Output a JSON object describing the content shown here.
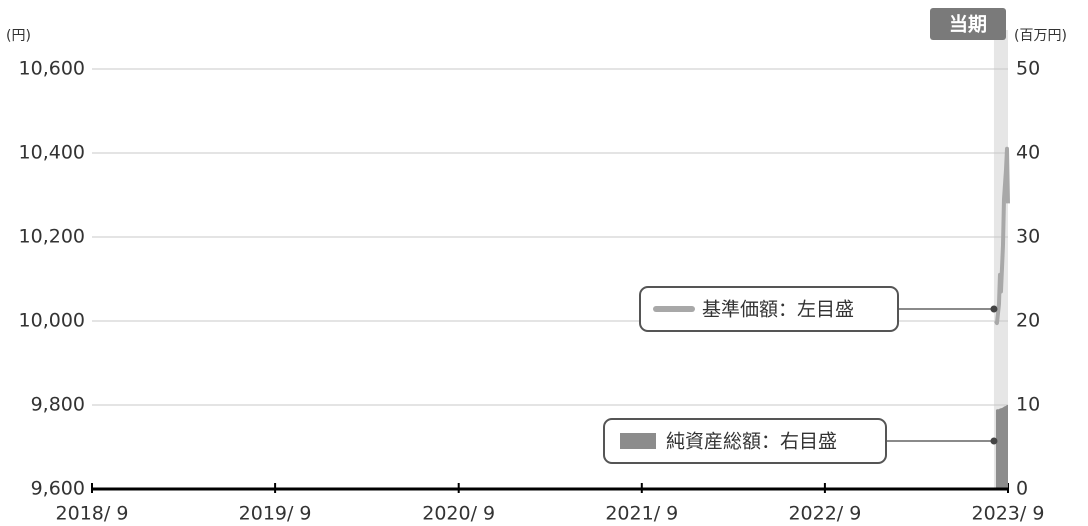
{
  "chart_data": {
    "type": "line",
    "y_unit": "(円)",
    "y2_unit": "(百万円)",
    "period_label": "当期",
    "x": [
      "2023-08-08",
      "2023-08-10",
      "2023-08-14",
      "2023-08-16",
      "2023-08-18",
      "2023-08-22",
      "2023-08-24",
      "2023-08-28",
      "2023-08-30",
      "2023-09-01"
    ],
    "series": [
      {
        "name": "基準価額：左目盛",
        "color": "#a8a8a8",
        "axis": "y",
        "values": [
          10000,
          9995,
          10040,
          10110,
          10070,
          10180,
          10290,
          10360,
          10410,
          10280
        ]
      },
      {
        "name": "純資産総額：右目盛",
        "color": "#8c8c8c",
        "axis": "y2",
        "kind": "area",
        "values": [
          9.4,
          9.5,
          9.5,
          9.6,
          9.6,
          9.7,
          9.8,
          9.9,
          10.0,
          10.0
        ]
      }
    ],
    "xlim": [
      "2018-09-01",
      "2023-09-01"
    ],
    "xticks": [
      {
        "value": "2018-09-01",
        "label": "2018/ 9"
      },
      {
        "value": "2019-09-01",
        "label": "2019/ 9"
      },
      {
        "value": "2020-09-01",
        "label": "2020/ 9"
      },
      {
        "value": "2021-09-01",
        "label": "2021/ 9"
      },
      {
        "value": "2022-09-01",
        "label": "2022/ 9"
      },
      {
        "value": "2023-09-01",
        "label": "2023/ 9"
      }
    ],
    "ylim": [
      9600,
      10600
    ],
    "yticks": [
      {
        "value": 9600,
        "label": "9,600"
      },
      {
        "value": 9800,
        "label": "9,800"
      },
      {
        "value": 10000,
        "label": "10,000"
      },
      {
        "value": 10200,
        "label": "10,200"
      },
      {
        "value": 10400,
        "label": "10,400"
      },
      {
        "value": 10600,
        "label": "10,600"
      }
    ],
    "y2lim": [
      0,
      50
    ],
    "y2ticks": [
      0,
      10,
      20,
      30,
      40,
      50
    ],
    "grid": true
  }
}
